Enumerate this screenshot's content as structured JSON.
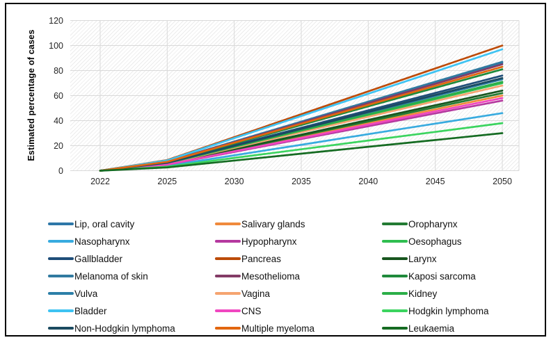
{
  "axes": {
    "y_title": "Estimated percentage of cases"
  },
  "chart_data": {
    "type": "line",
    "title": "",
    "xlabel": "",
    "ylabel": "Estimated percentage of cases",
    "x": [
      "2022",
      "2025",
      "2030",
      "2035",
      "2040",
      "2045",
      "2050"
    ],
    "ylim": [
      0,
      120
    ],
    "yticks": [
      0,
      20,
      40,
      60,
      80,
      100,
      120
    ],
    "grid": true,
    "plot_background": "light diagonal hatch",
    "gridline_color": "#d9d9d9",
    "legend_position": "bottom",
    "legend_columns": 3,
    "series": [
      {
        "name": "Lip, oral cavity",
        "color": "#2E77A8",
        "values": [
          0,
          7.3,
          23.0,
          38.8,
          54.5,
          70.3,
          86
        ]
      },
      {
        "name": "Salivary glands",
        "color": "#F08A3C",
        "values": [
          0,
          5.1,
          16.1,
          27.0,
          38.0,
          49.0,
          60
        ]
      },
      {
        "name": "Oropharynx",
        "color": "#237B33",
        "values": [
          0,
          5.3,
          16.6,
          28.0,
          39.3,
          50.7,
          62
        ]
      },
      {
        "name": "Nasopharynx",
        "color": "#38ABDF",
        "values": [
          0,
          3.9,
          12.3,
          20.7,
          29.2,
          37.6,
          46
        ]
      },
      {
        "name": "Hypopharynx",
        "color": "#B5399F",
        "values": [
          0,
          4.8,
          15.0,
          25.3,
          35.5,
          45.8,
          56
        ]
      },
      {
        "name": "Oesophagus",
        "color": "#2FBE50",
        "values": [
          0,
          6.0,
          18.8,
          31.6,
          44.4,
          57.2,
          70
        ]
      },
      {
        "name": "Gallbladder",
        "color": "#1F4E79",
        "values": [
          0,
          6.5,
          20.4,
          34.3,
          48.2,
          62.1,
          76
        ]
      },
      {
        "name": "Pancreas",
        "color": "#BC4B09",
        "values": [
          0,
          8.5,
          26.8,
          45.1,
          63.4,
          81.7,
          100
        ]
      },
      {
        "name": "Larynx",
        "color": "#18561F",
        "values": [
          0,
          5.4,
          17.1,
          28.8,
          40.6,
          52.3,
          64
        ]
      },
      {
        "name": "Melanoma of skin",
        "color": "#317AA0",
        "values": [
          0,
          7.4,
          23.3,
          39.2,
          55.2,
          71.1,
          87
        ]
      },
      {
        "name": "Mesothelioma",
        "color": "#833B66",
        "values": [
          0,
          7.2,
          22.8,
          38.3,
          53.9,
          69.4,
          85
        ]
      },
      {
        "name": "Kaposi sarcoma",
        "color": "#1F8A3B",
        "values": [
          0,
          6.9,
          21.7,
          36.5,
          51.4,
          66.2,
          81
        ]
      },
      {
        "name": "Vulva",
        "color": "#2C7FA8",
        "values": [
          0,
          6.2,
          19.6,
          32.9,
          46.3,
          59.6,
          73
        ]
      },
      {
        "name": "Vagina",
        "color": "#F5A470",
        "values": [
          0,
          5.8,
          18.2,
          30.7,
          43.1,
          55.6,
          68
        ]
      },
      {
        "name": "Kidney",
        "color": "#2BAE48",
        "values": [
          0,
          6.0,
          19.0,
          32.0,
          45.0,
          58.0,
          71
        ]
      },
      {
        "name": "Bladder",
        "color": "#3EC3F2",
        "values": [
          0,
          8.2,
          26.0,
          43.7,
          61.5,
          79.2,
          97
        ]
      },
      {
        "name": "CNS",
        "color": "#F047C0",
        "values": [
          0,
          4.9,
          15.5,
          26.1,
          36.8,
          47.4,
          58
        ]
      },
      {
        "name": "Hodgkin lymphoma",
        "color": "#3BD45F",
        "values": [
          0,
          3.2,
          10.2,
          17.1,
          24.1,
          31.0,
          38
        ]
      },
      {
        "name": "Non-Hodgkin lymphoma",
        "color": "#1B4A60",
        "values": [
          0,
          6.3,
          19.8,
          33.4,
          46.9,
          60.5,
          74
        ]
      },
      {
        "name": "Multiple myeloma",
        "color": "#E2660F",
        "values": [
          0,
          7.1,
          22.3,
          37.5,
          52.6,
          67.8,
          83
        ]
      },
      {
        "name": "Leukaemia",
        "color": "#156B22",
        "values": [
          0,
          2.6,
          8.1,
          13.6,
          19.1,
          24.5,
          30
        ]
      }
    ]
  }
}
